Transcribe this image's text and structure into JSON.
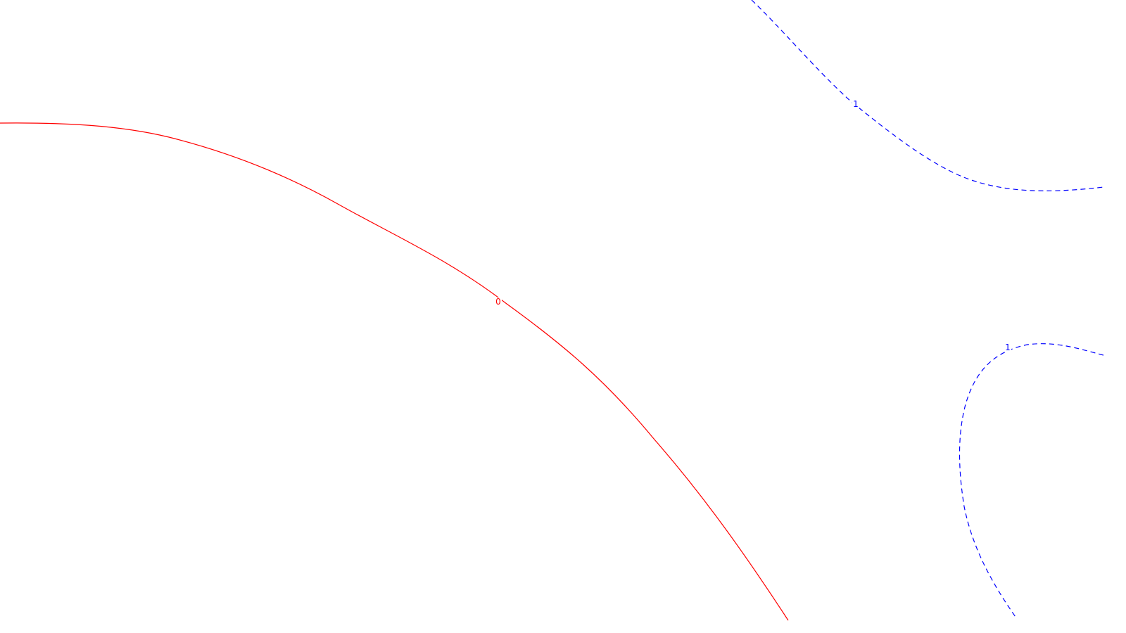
{
  "chart_data": {
    "type": "contour",
    "title": "",
    "xlabel": "",
    "ylabel": "",
    "grid": false,
    "legend": "none",
    "contours": [
      {
        "level": "0",
        "color": "#ff0000",
        "style": "solid",
        "segments": [
          {
            "name": "contour-0-line",
            "label": "0",
            "label_color": "#ff0000"
          }
        ]
      },
      {
        "level": "1",
        "color": "#0000ff",
        "style": "dashed",
        "segments": [
          {
            "name": "contour-1-upper-line",
            "label": "1",
            "label_color": "#0000ff"
          },
          {
            "name": "contour-1-lower-line",
            "label": "1",
            "label_color": "#0000ff"
          }
        ]
      }
    ]
  }
}
